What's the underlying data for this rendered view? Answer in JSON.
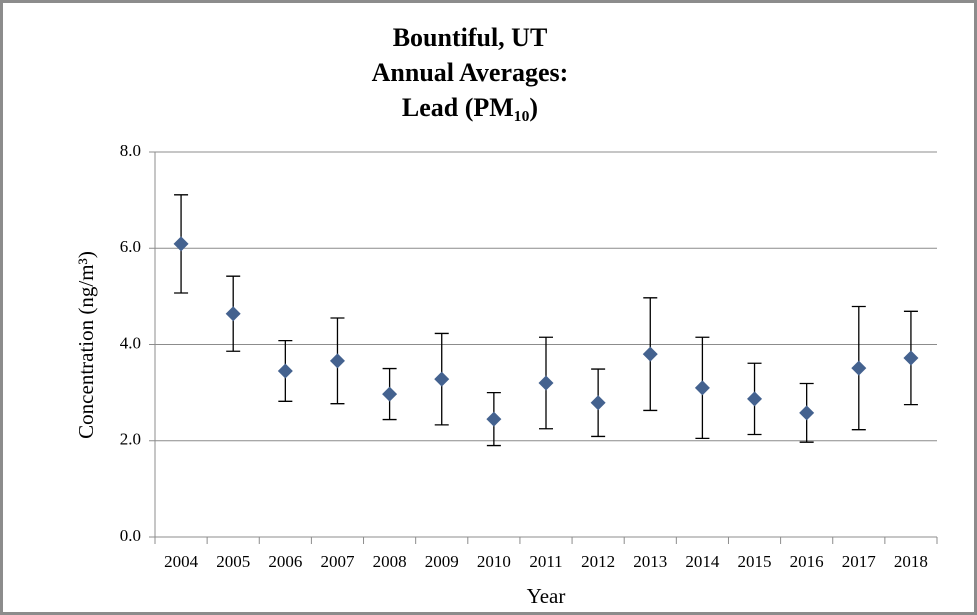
{
  "chart_data": {
    "type": "scatter",
    "title": [
      "Bountiful, UT",
      "Annual Averages:",
      "Lead (PM₁₀)"
    ],
    "x_label": "Year",
    "y_label": "Concentration (ng/m³)",
    "categories": [
      "2004",
      "2005",
      "2006",
      "2007",
      "2008",
      "2009",
      "2010",
      "2011",
      "2012",
      "2013",
      "2014",
      "2015",
      "2016",
      "2017",
      "2018"
    ],
    "values": [
      6.09,
      4.64,
      3.45,
      3.66,
      2.97,
      3.28,
      2.45,
      3.2,
      2.79,
      3.8,
      3.1,
      2.87,
      2.58,
      3.51,
      3.72
    ],
    "errors": [
      1.02,
      0.78,
      0.63,
      0.89,
      0.53,
      0.95,
      0.55,
      0.95,
      0.7,
      1.17,
      1.05,
      0.74,
      0.61,
      1.28,
      0.97
    ],
    "color": "#44628f",
    "ylim": [
      0,
      8
    ],
    "yticks": [
      {
        "value": 0,
        "label": "0.0"
      },
      {
        "value": 2,
        "label": "2.0"
      },
      {
        "value": 4,
        "label": "4.0"
      },
      {
        "value": 6,
        "label": "6.0"
      },
      {
        "value": 8,
        "label": "8.0"
      }
    ],
    "grid": true
  }
}
